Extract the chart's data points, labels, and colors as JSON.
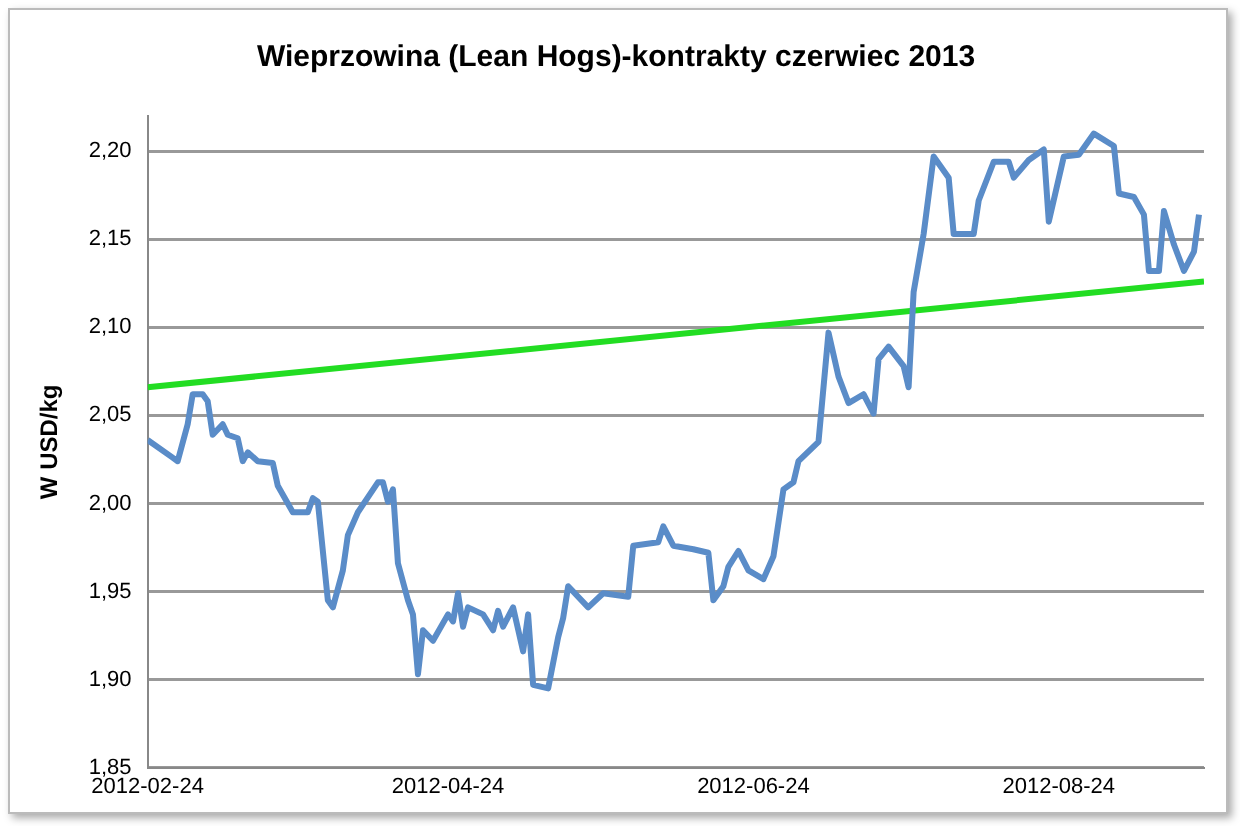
{
  "chart_data": {
    "type": "line",
    "title": "Wieprzowina (Lean Hogs)-kontrakty czerwiec 2013",
    "ylabel": "W USD/kg",
    "xlim": [
      "2012-02-24",
      "2012-09-22"
    ],
    "xticks": [
      "2012-02-24",
      "2012-04-24",
      "2012-06-24",
      "2012-08-24"
    ],
    "ylim": [
      1.85,
      2.22
    ],
    "yticks": [
      {
        "value": 1.85,
        "label": "1,85"
      },
      {
        "value": 1.9,
        "label": "1,90"
      },
      {
        "value": 1.95,
        "label": "1,95"
      },
      {
        "value": 2.0,
        "label": "2,00"
      },
      {
        "value": 2.05,
        "label": "2,05"
      },
      {
        "value": 2.1,
        "label": "2,10"
      },
      {
        "value": 2.15,
        "label": "2,15"
      },
      {
        "value": 2.2,
        "label": "2,20"
      }
    ],
    "grid": "y",
    "legend": false,
    "marker": "none",
    "line_style": "solid",
    "series": [
      {
        "type": "line",
        "color": "#5a8cc8",
        "x": [
          "2012-02-24",
          "2012-02-29",
          "2012-03-01",
          "2012-03-03",
          "2012-03-04",
          "2012-03-06",
          "2012-03-07",
          "2012-03-08",
          "2012-03-10",
          "2012-03-11",
          "2012-03-13",
          "2012-03-14",
          "2012-03-15",
          "2012-03-17",
          "2012-03-20",
          "2012-03-21",
          "2012-03-24",
          "2012-03-27",
          "2012-03-28",
          "2012-03-29",
          "2012-03-31",
          "2012-04-01",
          "2012-04-03",
          "2012-04-04",
          "2012-04-06",
          "2012-04-10",
          "2012-04-11",
          "2012-04-12",
          "2012-04-13",
          "2012-04-14",
          "2012-04-16",
          "2012-04-17",
          "2012-04-18",
          "2012-04-19",
          "2012-04-21",
          "2012-04-24",
          "2012-04-25",
          "2012-04-26",
          "2012-04-27",
          "2012-04-28",
          "2012-05-01",
          "2012-05-03",
          "2012-05-04",
          "2012-05-05",
          "2012-05-07",
          "2012-05-09",
          "2012-05-10",
          "2012-05-11",
          "2012-05-14",
          "2012-05-16",
          "2012-05-17",
          "2012-05-18",
          "2012-05-22",
          "2012-05-25",
          "2012-05-30",
          "2012-05-31",
          "2012-06-05",
          "2012-06-06",
          "2012-06-08",
          "2012-06-12",
          "2012-06-15",
          "2012-06-16",
          "2012-06-18",
          "2012-06-19",
          "2012-06-21",
          "2012-06-23",
          "2012-06-26",
          "2012-06-28",
          "2012-06-30",
          "2012-07-02",
          "2012-07-03",
          "2012-07-07",
          "2012-07-09",
          "2012-07-11",
          "2012-07-13",
          "2012-07-16",
          "2012-07-18",
          "2012-07-19",
          "2012-07-21",
          "2012-07-24",
          "2012-07-25",
          "2012-07-26",
          "2012-07-28",
          "2012-07-30",
          "2012-08-02",
          "2012-08-03",
          "2012-08-07",
          "2012-08-08",
          "2012-08-11",
          "2012-08-14",
          "2012-08-15",
          "2012-08-18",
          "2012-08-21",
          "2012-08-22",
          "2012-08-25",
          "2012-08-28",
          "2012-08-31",
          "2012-09-04",
          "2012-09-05",
          "2012-09-08",
          "2012-09-10",
          "2012-09-11",
          "2012-09-13",
          "2012-09-14",
          "2012-09-16",
          "2012-09-18",
          "2012-09-20",
          "2012-09-21"
        ],
        "values": [
          2.036,
          2.026,
          2.024,
          2.045,
          2.062,
          2.062,
          2.058,
          2.039,
          2.045,
          2.039,
          2.037,
          2.024,
          2.029,
          2.024,
          2.023,
          2.01,
          1.995,
          1.995,
          2.003,
          2.001,
          1.945,
          1.941,
          1.962,
          1.982,
          1.995,
          2.012,
          2.012,
          2.001,
          2.008,
          1.966,
          1.945,
          1.937,
          1.903,
          1.928,
          1.922,
          1.937,
          1.933,
          1.949,
          1.93,
          1.941,
          1.937,
          1.928,
          1.939,
          1.93,
          1.941,
          1.916,
          1.937,
          1.897,
          1.895,
          1.924,
          1.935,
          1.953,
          1.941,
          1.949,
          1.947,
          1.976,
          1.978,
          1.987,
          1.976,
          1.974,
          1.972,
          1.945,
          1.953,
          1.964,
          1.973,
          1.962,
          1.957,
          1.97,
          2.008,
          2.012,
          2.024,
          2.035,
          2.097,
          2.072,
          2.057,
          2.062,
          2.051,
          2.082,
          2.089,
          2.078,
          2.066,
          2.12,
          2.153,
          2.197,
          2.185,
          2.153,
          2.153,
          2.172,
          2.194,
          2.194,
          2.185,
          2.195,
          2.201,
          2.16,
          2.197,
          2.198,
          2.21,
          2.203,
          2.176,
          2.174,
          2.164,
          2.132,
          2.132,
          2.166,
          2.147,
          2.132,
          2.143,
          2.164
        ]
      },
      {
        "type": "line",
        "color": "#22dd22",
        "x": [
          "2012-02-24",
          "2012-09-22"
        ],
        "values": [
          2.066,
          2.126
        ]
      }
    ]
  }
}
